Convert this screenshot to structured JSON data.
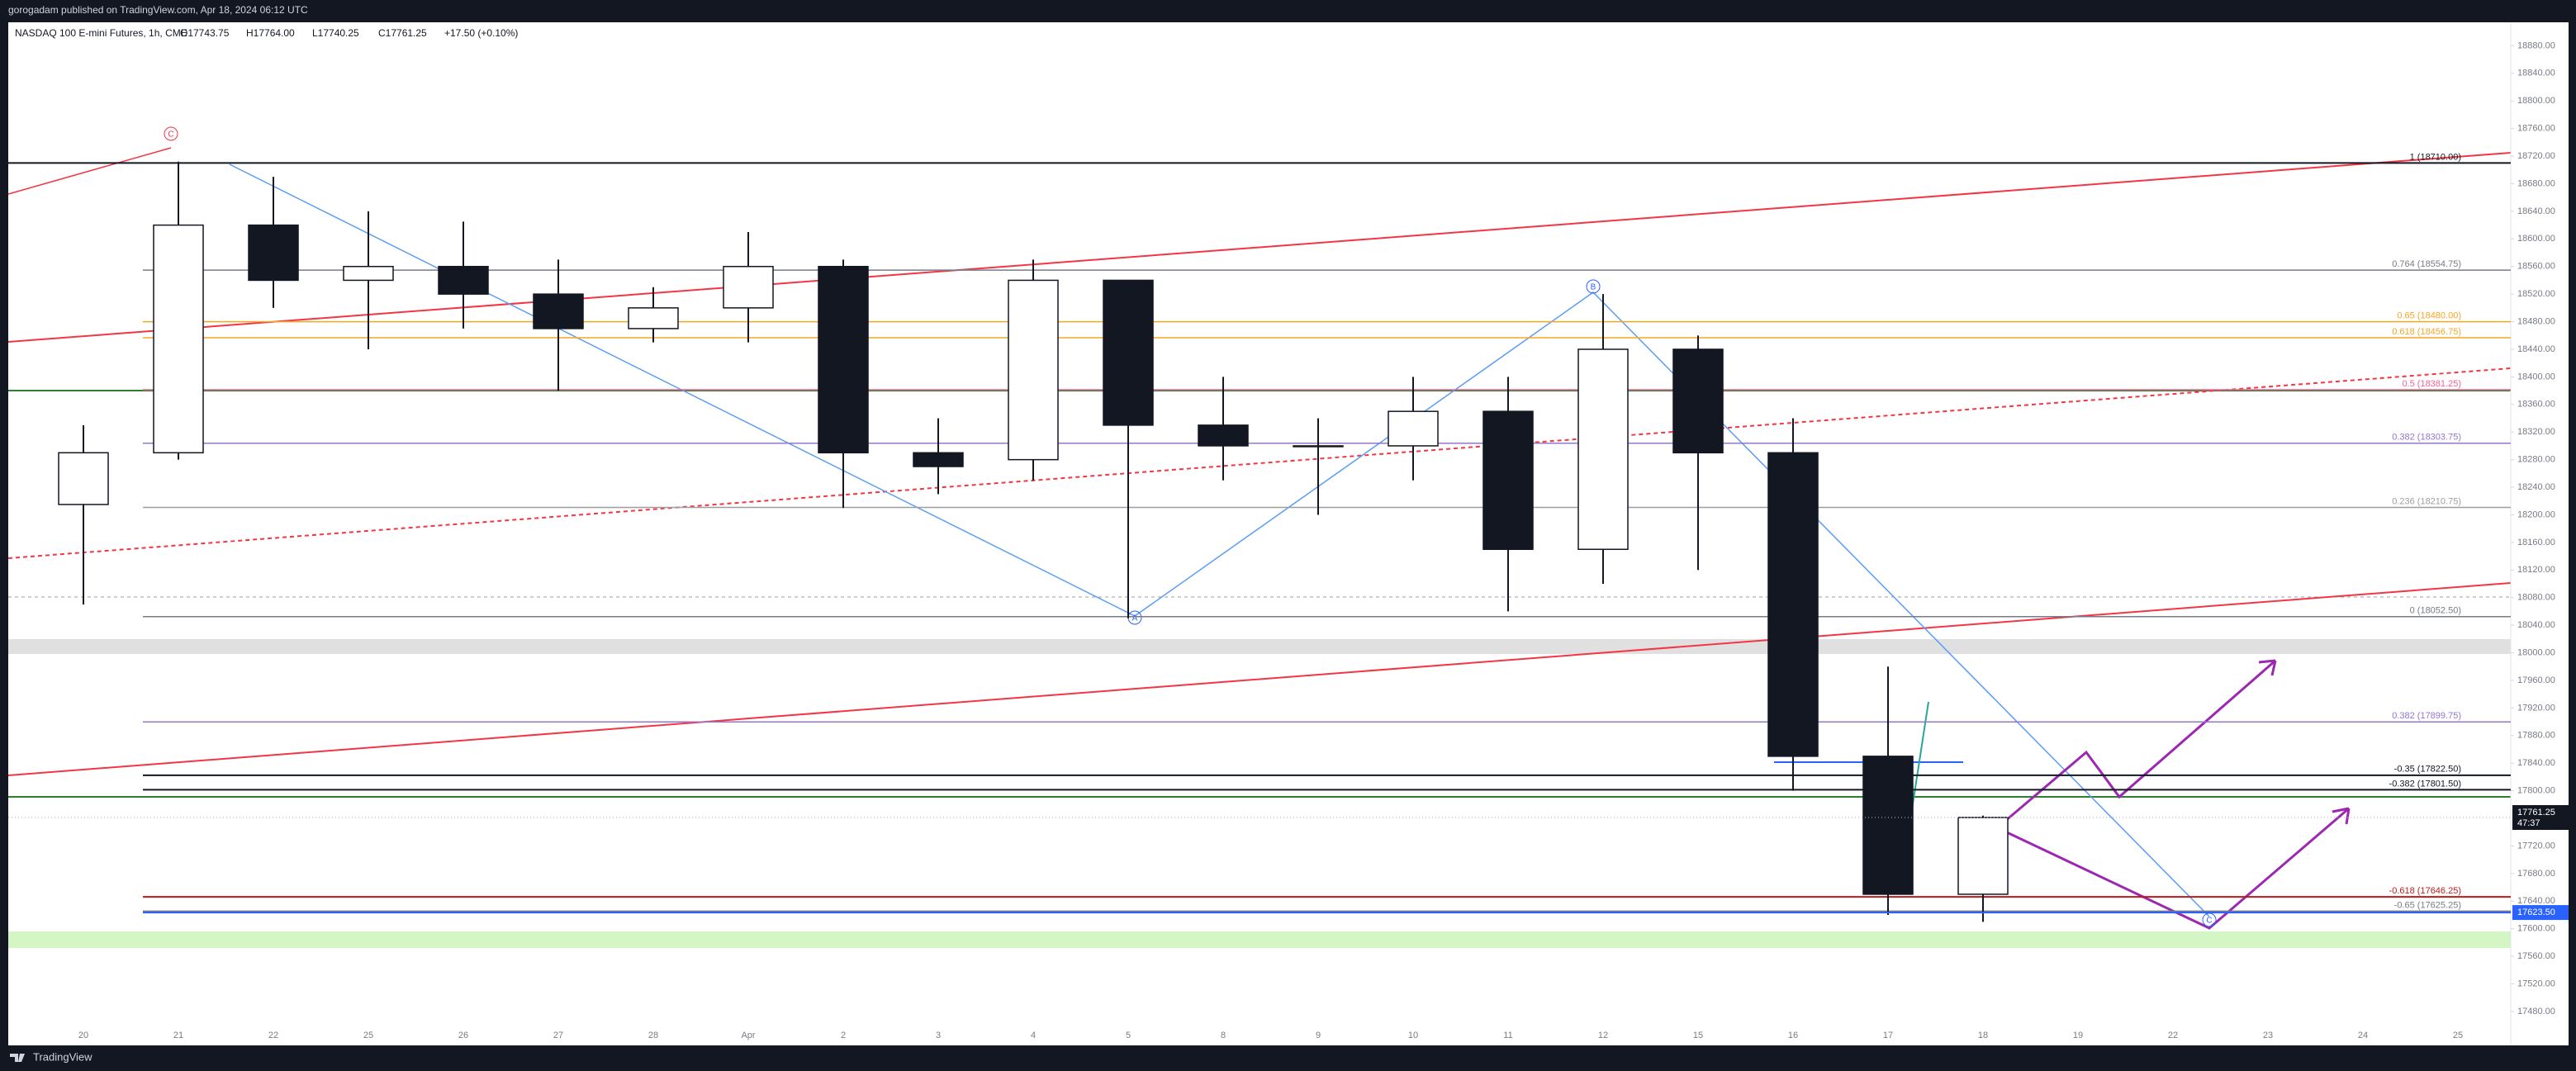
{
  "chart_data": {
    "type": "candlestick",
    "publisher": "gorogadam published on TradingView.com, Apr 18, 2024 06:12 UTC",
    "title": "NASDAQ 100 E-mini Futures, 1h, CME",
    "ohlc_text": [
      "O17743.75",
      "H17764.00",
      "L17740.25",
      "C17761.25",
      "+17.50 (+0.10%)"
    ],
    "brand": "TradingView",
    "categories": [
      "20",
      "21",
      "22",
      "25",
      "26",
      "27",
      "28",
      "Apr",
      "2",
      "3",
      "4",
      "5",
      "8",
      "9",
      "10",
      "11",
      "12",
      "15",
      "16",
      "17",
      "18",
      "19",
      "22",
      "23",
      "24",
      "25"
    ],
    "open": [
      18215,
      18290,
      18620,
      18540,
      18560,
      18520,
      18470,
      18500,
      18560,
      18290,
      18280,
      18540,
      18330,
      18300,
      18300,
      18350,
      18150,
      18440,
      18290,
      17850,
      17650,
      null,
      null,
      null,
      null,
      null
    ],
    "high": [
      18330,
      18712,
      18690,
      18640,
      18625,
      18570,
      18530,
      18610,
      18570,
      18340,
      18570,
      18540,
      18400,
      18340,
      18400,
      18400,
      18520,
      18460,
      18340,
      17980,
      17764,
      null,
      null,
      null,
      null,
      null
    ],
    "low": [
      18070,
      18280,
      18500,
      18440,
      18470,
      18380,
      18450,
      18450,
      18210,
      18230,
      18250,
      18050,
      18250,
      18200,
      18250,
      18060,
      18100,
      18120,
      17800,
      17620,
      17610,
      null,
      null,
      null,
      null,
      null
    ],
    "close": [
      18290,
      18620,
      18540,
      18560,
      18520,
      18470,
      18500,
      18560,
      18290,
      18270,
      18540,
      18330,
      18300,
      18300,
      18350,
      18150,
      18440,
      18290,
      17850,
      17650,
      17761.25,
      null,
      null,
      null,
      null,
      null
    ],
    "up_color": "#ffffff",
    "down_color": "#131722",
    "ylim": [
      17462,
      18914
    ],
    "yticks": [
      {
        "value": 17480,
        "label": "17480.00"
      },
      {
        "value": 17520,
        "label": "17520.00"
      },
      {
        "value": 17560,
        "label": "17560.00"
      },
      {
        "value": 17600,
        "label": "17600.00"
      },
      {
        "value": 17640,
        "label": "17640.00"
      },
      {
        "value": 17680,
        "label": "17680.00"
      },
      {
        "value": 17720,
        "label": "17720.00"
      },
      {
        "value": 17800,
        "label": "17800.00"
      },
      {
        "value": 17840,
        "label": "17840.00"
      },
      {
        "value": 17880,
        "label": "17880.00"
      },
      {
        "value": 17920,
        "label": "17920.00"
      },
      {
        "value": 17960,
        "label": "17960.00"
      },
      {
        "value": 18000,
        "label": "18000.00"
      },
      {
        "value": 18040,
        "label": "18040.00"
      },
      {
        "value": 18080,
        "label": "18080.00"
      },
      {
        "value": 18120,
        "label": "18120.00"
      },
      {
        "value": 18160,
        "label": "18160.00"
      },
      {
        "value": 18200,
        "label": "18200.00"
      },
      {
        "value": 18240,
        "label": "18240.00"
      },
      {
        "value": 18280,
        "label": "18280.00"
      },
      {
        "value": 18320,
        "label": "18320.00"
      },
      {
        "value": 18360,
        "label": "18360.00"
      },
      {
        "value": 18400,
        "label": "18400.00"
      },
      {
        "value": 18440,
        "label": "18440.00"
      },
      {
        "value": 18480,
        "label": "18480.00"
      },
      {
        "value": 18520,
        "label": "18520.00"
      },
      {
        "value": 18560,
        "label": "18560.00"
      },
      {
        "value": 18600,
        "label": "18600.00"
      },
      {
        "value": 18640,
        "label": "18640.00"
      },
      {
        "value": 18680,
        "label": "18680.00"
      },
      {
        "value": 18720,
        "label": "18720.00"
      },
      {
        "value": 18760,
        "label": "18760.00"
      },
      {
        "value": 18800,
        "label": "18800.00"
      },
      {
        "value": 18840,
        "label": "18840.00"
      },
      {
        "value": 18880,
        "label": "18880.00"
      }
    ],
    "fib_levels": [
      {
        "value": 18710,
        "label": "1 (18710.00)",
        "color": "#131722"
      },
      {
        "value": 18554.75,
        "label": "0.764 (18554.75)",
        "color": "#787b86"
      },
      {
        "value": 18480,
        "label": "0.65 (18480.00)",
        "color": "#f5a623"
      },
      {
        "value": 18456.75,
        "label": "0.618 (18456.75)",
        "color": "#f5a623"
      },
      {
        "value": 18381.25,
        "label": "0.5 (18381.25)",
        "color": "#f06292"
      },
      {
        "value": 18303.75,
        "label": "0.382 (18303.75)",
        "color": "#9575cd"
      },
      {
        "value": 18210.75,
        "label": "0.236 (18210.75)",
        "color": "#9e9e9e"
      },
      {
        "value": 18052.5,
        "label": "0 (18052.50)",
        "color": "#787b86"
      },
      {
        "value": 17899.75,
        "label": "0.382 (17899.75)",
        "color": "#9575cd"
      },
      {
        "value": 17822.5,
        "label": "-0.35 (17822.50)",
        "color": "#131722"
      },
      {
        "value": 17801.5,
        "label": "-0.382 (17801.50)",
        "color": "#131722"
      },
      {
        "value": 17646.25,
        "label": "-0.618 (17646.25)",
        "color": "#b71c1c"
      },
      {
        "value": 17625.25,
        "label": "-0.65 (17625.25)",
        "color": "#787b86"
      }
    ],
    "last_price": 17761.25,
    "countdown": "47:37",
    "marker_price": {
      "value": 17623.5,
      "label": "17623.50"
    },
    "wave_labels": [
      "C",
      "B",
      "A",
      "C"
    ]
  }
}
